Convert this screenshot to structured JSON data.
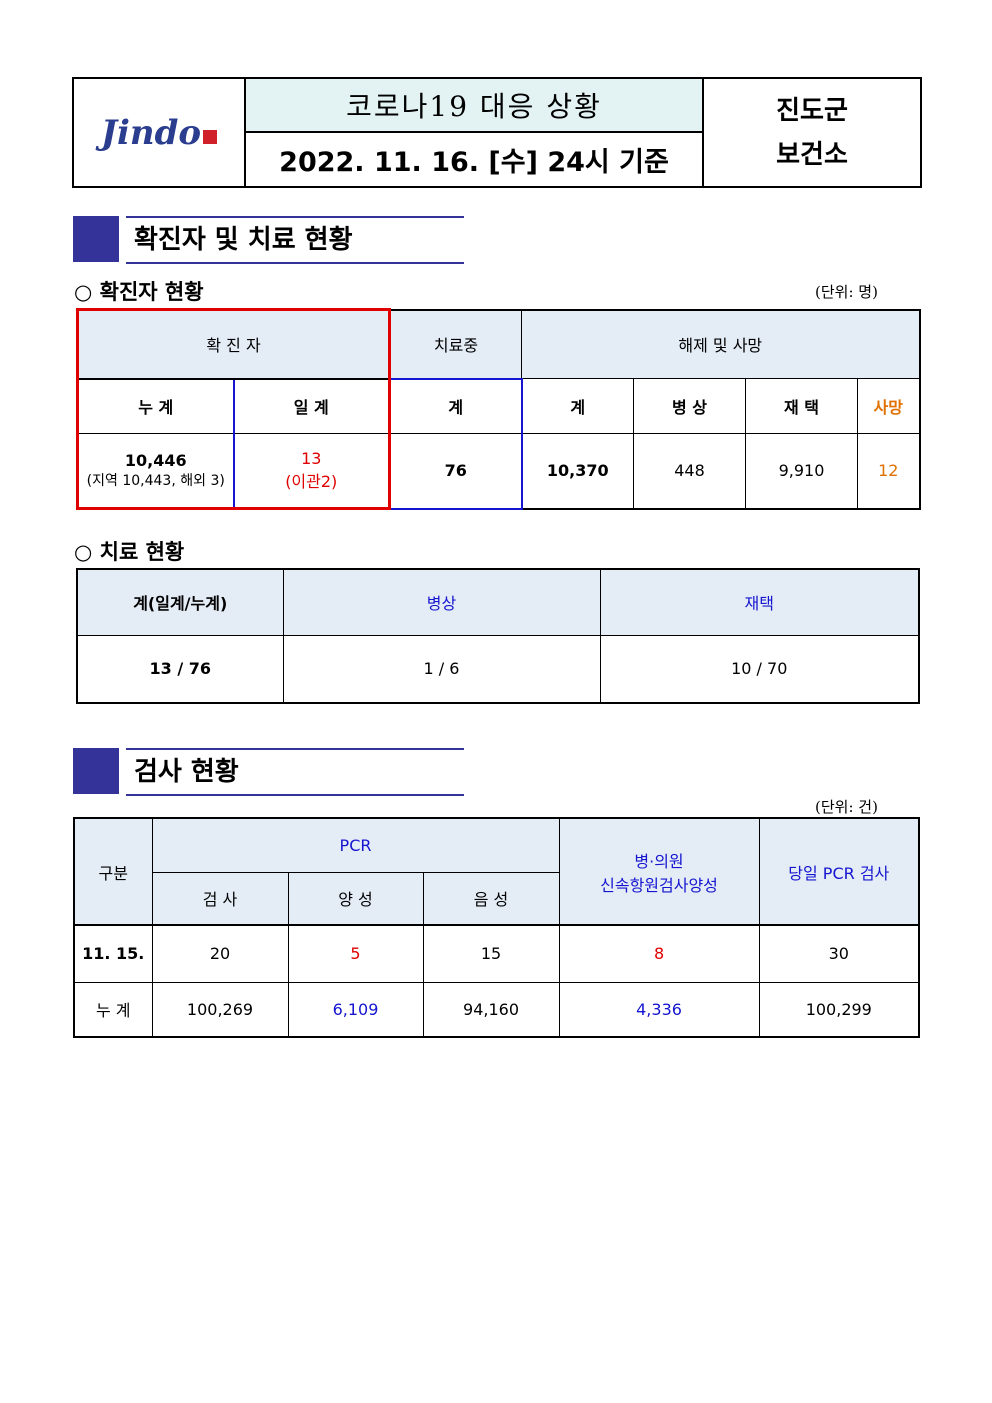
{
  "header": {
    "logo_text": "Jindo",
    "title": "코로나19 대응 상황",
    "date": "2022. 11. 16. [수] 24시 기준",
    "org_line1": "진도군",
    "org_line2": "보건소"
  },
  "section1": {
    "title": "확진자 및 치료 현황",
    "sub1": "○ 확진자 현황",
    "unit1": "(단위:  명)",
    "t1": {
      "h_confirmed": "확 진 자",
      "h_treating": "치료중",
      "h_released": "해제 및 사망",
      "h_cum": "누 계",
      "h_daily": "일 계",
      "h_total": "계",
      "h_rel_total": "계",
      "h_hospital": "병 상",
      "h_home": "재 택",
      "h_death": "사망",
      "cum": "10,446",
      "cum_detail": "(지역 10,443, 해외 3)",
      "daily": "13",
      "daily_detail": "(이관2)",
      "treating": "76",
      "rel_total": "10,370",
      "hospital": "448",
      "home": "9,910",
      "death": "12"
    },
    "sub2": "○ 치료 현황",
    "t2": {
      "h_total": "계(일계/누계)",
      "h_hospital": "병상",
      "h_home": "재택",
      "total": "13 / 76",
      "hospital": "1 / 6",
      "home": "10 / 70"
    }
  },
  "section2": {
    "title": "검사 현황",
    "unit": "(단위:  건)",
    "t3": {
      "h_category": "구분",
      "h_pcr": "PCR",
      "h_test": "검 사",
      "h_pos": "양 성",
      "h_neg": "음 성",
      "h_rapid1": "병·의원",
      "h_rapid2": "신속항원검사양성",
      "h_daily_pcr": "당일 PCR 검사",
      "rows": [
        {
          "label": "11. 15.",
          "test": "20",
          "pos": "5",
          "neg": "15",
          "rapid": "8",
          "daily": "30"
        },
        {
          "label": "누 계",
          "test": "100,269",
          "pos": "6,109",
          "neg": "94,160",
          "rapid": "4,336",
          "daily": "100,299"
        }
      ]
    }
  },
  "colors": {
    "section_accent": "#33339a",
    "header_fill": "#e4ecf6",
    "title_fill": "#e3f3f3",
    "red": "#e00000",
    "blue": "#1515d0",
    "orange": "#e07000"
  }
}
